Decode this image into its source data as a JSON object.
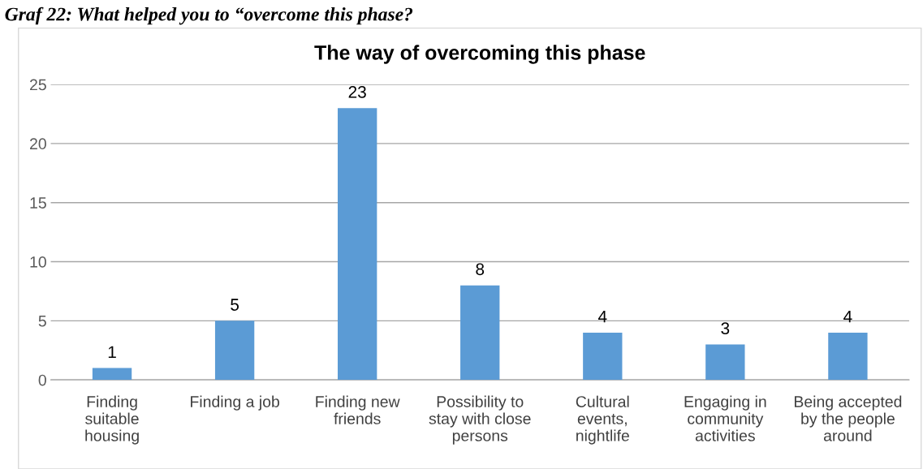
{
  "chart_data": {
    "type": "bar",
    "title": "The way of overcoming this phase",
    "annotations": [
      "Graf 22: What helped you to “overcome this phase?"
    ],
    "categories": [
      "Finding suitable housing",
      "Finding a job",
      "Finding new friends",
      "Possibility to stay with close persons",
      "Cultural events, nightlife",
      "Engaging in community activities",
      "Being accepted by the people around"
    ],
    "values": [
      1,
      5,
      23,
      8,
      4,
      3,
      4
    ],
    "color": "#5b9bd5",
    "ylim": [
      0,
      25
    ],
    "yticks": [
      0,
      5,
      10,
      15,
      20,
      25
    ],
    "grid": "y",
    "data_labels": true
  }
}
